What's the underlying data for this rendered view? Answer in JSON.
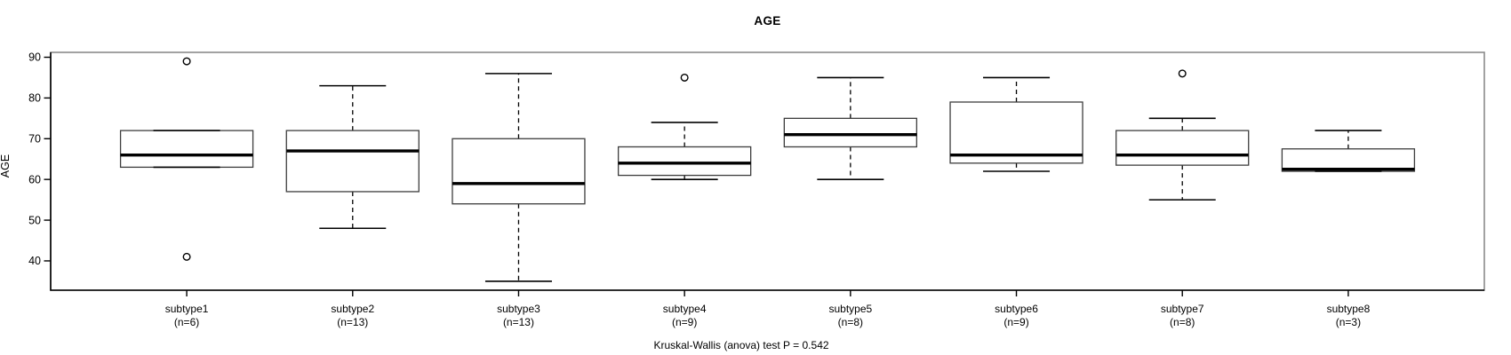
{
  "chart_data": {
    "type": "boxplot",
    "title": "AGE",
    "ylabel": "AGE",
    "xlabel": "",
    "ylim": [
      32.8,
      91.2
    ],
    "yticks": [
      40,
      50,
      60,
      70,
      80,
      90
    ],
    "grid": false,
    "legend": "none",
    "annotation": "Kruskal-Wallis (anova) test P = 0.542",
    "groups": [
      {
        "label": "subtype1",
        "count_label": "(n=6)",
        "n": 6,
        "whisker_low": 63,
        "q1": 63,
        "median": 66,
        "q3": 72,
        "whisker_high": 72,
        "outliers": [
          89,
          41
        ]
      },
      {
        "label": "subtype2",
        "count_label": "(n=13)",
        "n": 13,
        "whisker_low": 48,
        "q1": 57,
        "median": 67,
        "q3": 72,
        "whisker_high": 83,
        "outliers": []
      },
      {
        "label": "subtype3",
        "count_label": "(n=13)",
        "n": 13,
        "whisker_low": 35,
        "q1": 54,
        "median": 59,
        "q3": 70,
        "whisker_high": 86,
        "outliers": []
      },
      {
        "label": "subtype4",
        "count_label": "(n=9)",
        "n": 9,
        "whisker_low": 60,
        "q1": 61,
        "median": 64,
        "q3": 68,
        "whisker_high": 74,
        "outliers": [
          85
        ]
      },
      {
        "label": "subtype5",
        "count_label": "(n=8)",
        "n": 8,
        "whisker_low": 60,
        "q1": 68,
        "median": 71,
        "q3": 75,
        "whisker_high": 85,
        "outliers": []
      },
      {
        "label": "subtype6",
        "count_label": "(n=9)",
        "n": 9,
        "whisker_low": 62,
        "q1": 64,
        "median": 66,
        "q3": 79,
        "whisker_high": 85,
        "outliers": []
      },
      {
        "label": "subtype7",
        "count_label": "(n=8)",
        "n": 8,
        "whisker_low": 55,
        "q1": 63.5,
        "median": 66,
        "q3": 72,
        "whisker_high": 75,
        "outliers": [
          86
        ]
      },
      {
        "label": "subtype8",
        "count_label": "(n=3)",
        "n": 3,
        "whisker_low": 62,
        "q1": 62,
        "median": 62.5,
        "q3": 67.5,
        "whisker_high": 72,
        "outliers": []
      }
    ],
    "colors": {
      "line": "#000000",
      "frame_light": "#8a8a8a",
      "box_border": "#3d3d3d",
      "box_fill": "#ffffff",
      "background": "#ffffff",
      "text": "#000000"
    }
  }
}
